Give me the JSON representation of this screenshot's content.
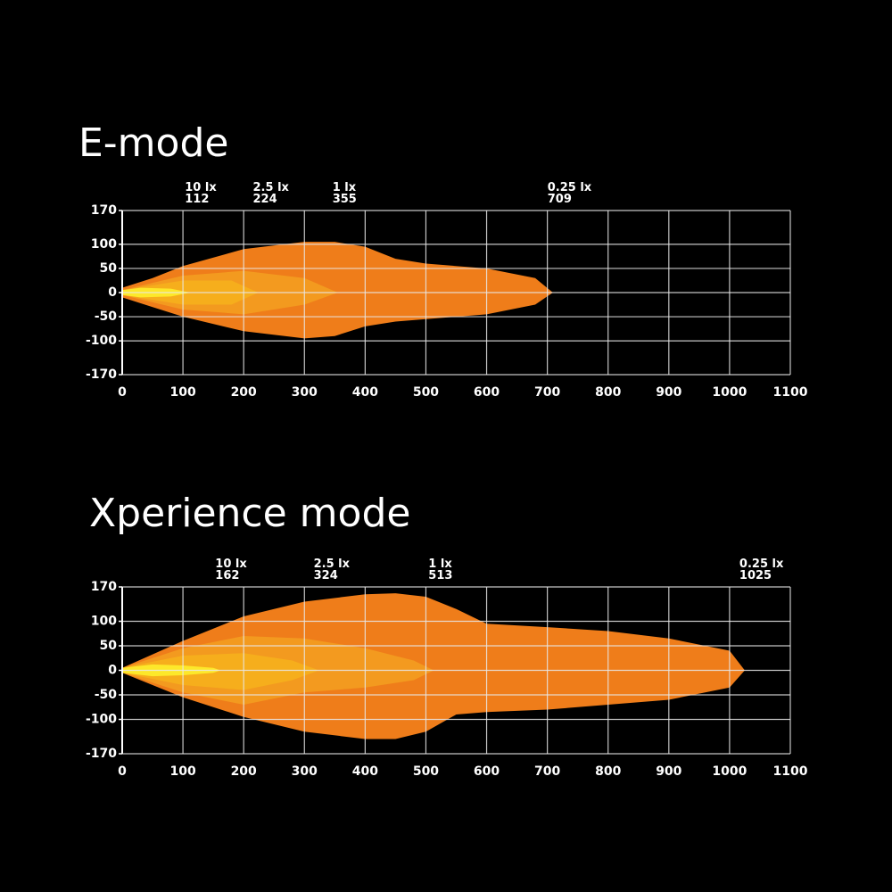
{
  "chart_data": [
    {
      "type": "area",
      "title": "E-mode",
      "xlim": [
        0,
        1100
      ],
      "xticks": [
        0,
        100,
        200,
        300,
        400,
        500,
        600,
        700,
        800,
        900,
        1000,
        1100
      ],
      "ylim": [
        -170,
        170
      ],
      "yticks": [
        -170,
        -100,
        -50,
        0,
        50,
        100,
        170
      ],
      "grid": true,
      "contours": [
        {
          "label": "0.25 lx",
          "reach": 709,
          "color": "#ef7d1a",
          "x": [
            0,
            50,
            100,
            200,
            300,
            350,
            400,
            450,
            500,
            600,
            680,
            709
          ],
          "upper": [
            10,
            30,
            55,
            90,
            105,
            105,
            95,
            70,
            60,
            50,
            30,
            0
          ],
          "lower": [
            -10,
            -30,
            -50,
            -80,
            -95,
            -90,
            -70,
            -60,
            -55,
            -45,
            -25,
            0
          ]
        },
        {
          "label": "1 lx",
          "reach": 355,
          "color": "#f39a1f",
          "x": [
            0,
            50,
            100,
            200,
            300,
            355
          ],
          "upper": [
            5,
            20,
            35,
            45,
            30,
            0
          ],
          "lower": [
            -5,
            -20,
            -35,
            -45,
            -25,
            0
          ]
        },
        {
          "label": "2.5 lx",
          "reach": 224,
          "color": "#f6ae1c",
          "x": [
            0,
            50,
            100,
            180,
            224
          ],
          "upper": [
            5,
            15,
            25,
            25,
            0
          ],
          "lower": [
            -5,
            -15,
            -25,
            -25,
            0
          ]
        },
        {
          "label": "10 lx",
          "reach": 112,
          "color": "#fde82a",
          "x": [
            0,
            30,
            80,
            112
          ],
          "upper": [
            5,
            10,
            8,
            0
          ],
          "lower": [
            -5,
            -10,
            -8,
            0
          ]
        }
      ]
    },
    {
      "type": "area",
      "title": "Xperience mode",
      "xlim": [
        0,
        1100
      ],
      "xticks": [
        0,
        100,
        200,
        300,
        400,
        500,
        600,
        700,
        800,
        900,
        1000,
        1100
      ],
      "ylim": [
        -170,
        170
      ],
      "yticks": [
        -170,
        -100,
        -50,
        0,
        50,
        100,
        170
      ],
      "grid": true,
      "contours": [
        {
          "label": "0.25 lx",
          "reach": 1025,
          "color": "#ef7d1a",
          "x": [
            0,
            100,
            200,
            300,
            400,
            450,
            500,
            550,
            600,
            700,
            800,
            900,
            1000,
            1025
          ],
          "upper": [
            5,
            60,
            110,
            140,
            155,
            157,
            150,
            125,
            95,
            88,
            80,
            65,
            40,
            0
          ],
          "lower": [
            -5,
            -55,
            -95,
            -125,
            -140,
            -140,
            -125,
            -90,
            -85,
            -80,
            -70,
            -60,
            -35,
            0
          ]
        },
        {
          "label": "1 lx",
          "reach": 513,
          "color": "#f39a1f",
          "x": [
            0,
            100,
            200,
            300,
            400,
            480,
            513
          ],
          "upper": [
            5,
            45,
            70,
            65,
            45,
            20,
            0
          ],
          "lower": [
            -5,
            -45,
            -70,
            -45,
            -35,
            -20,
            0
          ]
        },
        {
          "label": "2.5 lx",
          "reach": 324,
          "color": "#f6ae1c",
          "x": [
            0,
            100,
            200,
            280,
            324
          ],
          "upper": [
            5,
            30,
            35,
            20,
            0
          ],
          "lower": [
            -5,
            -30,
            -40,
            -20,
            0
          ]
        },
        {
          "label": "10 lx",
          "reach": 162,
          "color": "#fde82a",
          "x": [
            0,
            50,
            100,
            150,
            162
          ],
          "upper": [
            5,
            12,
            10,
            5,
            0
          ],
          "lower": [
            -5,
            -12,
            -10,
            -5,
            0
          ]
        }
      ]
    }
  ]
}
